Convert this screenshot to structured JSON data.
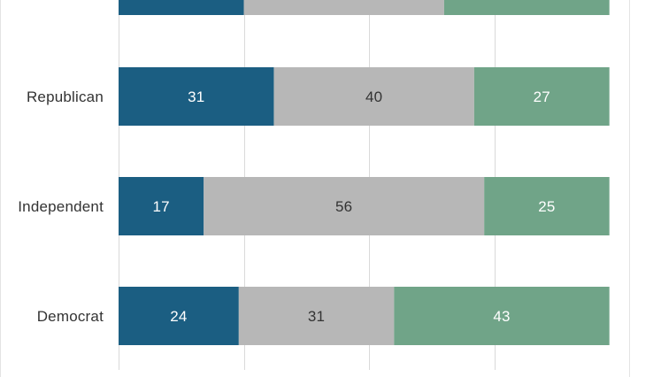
{
  "chart_data": {
    "type": "bar",
    "orientation": "horizontal",
    "stacked": true,
    "title": "",
    "xlabel": "",
    "ylabel": "",
    "xlim": [
      0,
      100
    ],
    "grid": true,
    "legend": "none",
    "categories": [
      "",
      "Republican",
      "Independent",
      "Democrat"
    ],
    "series": [
      {
        "color": "#1b5e82",
        "label_color": "#ffffff",
        "values": [
          25,
          31,
          17,
          24
        ]
      },
      {
        "color": "#b7b7b7",
        "label_color": "#333333",
        "values": [
          40,
          40,
          56,
          31
        ]
      },
      {
        "color": "#70a488",
        "label_color": "#ffffff",
        "values": [
          33,
          27,
          25,
          43
        ]
      }
    ],
    "data_labels": [
      [
        "",
        "",
        ""
      ],
      [
        "31",
        "40",
        "27"
      ],
      [
        "17",
        "56",
        "25"
      ],
      [
        "24",
        "31",
        "43"
      ]
    ]
  }
}
